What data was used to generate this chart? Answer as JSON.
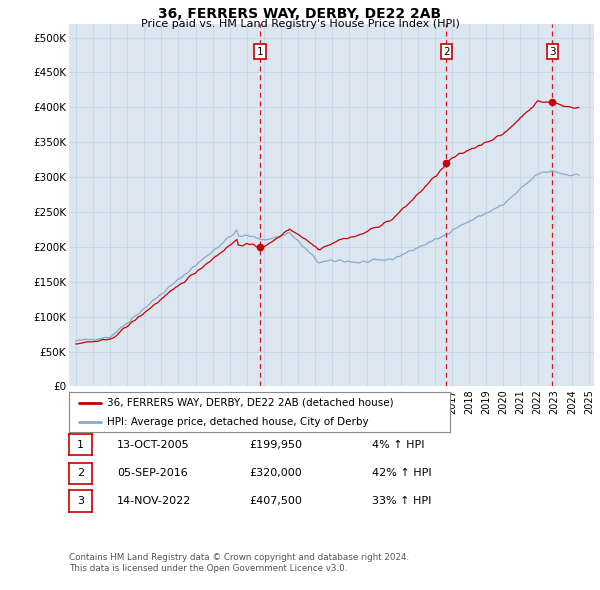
{
  "title": "36, FERRERS WAY, DERBY, DE22 2AB",
  "subtitle": "Price paid vs. HM Land Registry's House Price Index (HPI)",
  "sale_label": "36, FERRERS WAY, DERBY, DE22 2AB (detached house)",
  "hpi_label": "HPI: Average price, detached house, City of Derby",
  "sale_color": "#cc0000",
  "hpi_color": "#88aacc",
  "background_color": "#dce6f1",
  "grid_color": "#c8d8e8",
  "ylim": [
    0,
    520000
  ],
  "yticks": [
    0,
    50000,
    100000,
    150000,
    200000,
    250000,
    300000,
    350000,
    400000,
    450000,
    500000
  ],
  "ytick_labels": [
    "£0",
    "£50K",
    "£100K",
    "£150K",
    "£200K",
    "£250K",
    "£300K",
    "£350K",
    "£400K",
    "£450K",
    "£500K"
  ],
  "transactions": [
    {
      "num": 1,
      "date": "13-OCT-2005",
      "price": 199950,
      "hpi_change": "4%",
      "direction": "↑",
      "year": 2005.79
    },
    {
      "num": 2,
      "date": "05-SEP-2016",
      "price": 320000,
      "hpi_change": "42%",
      "direction": "↑",
      "year": 2016.67
    },
    {
      "num": 3,
      "date": "14-NOV-2022",
      "price": 407500,
      "hpi_change": "33%",
      "direction": "↑",
      "year": 2022.87
    }
  ],
  "footnote1": "Contains HM Land Registry data © Crown copyright and database right 2024.",
  "footnote2": "This data is licensed under the Open Government Licence v3.0."
}
